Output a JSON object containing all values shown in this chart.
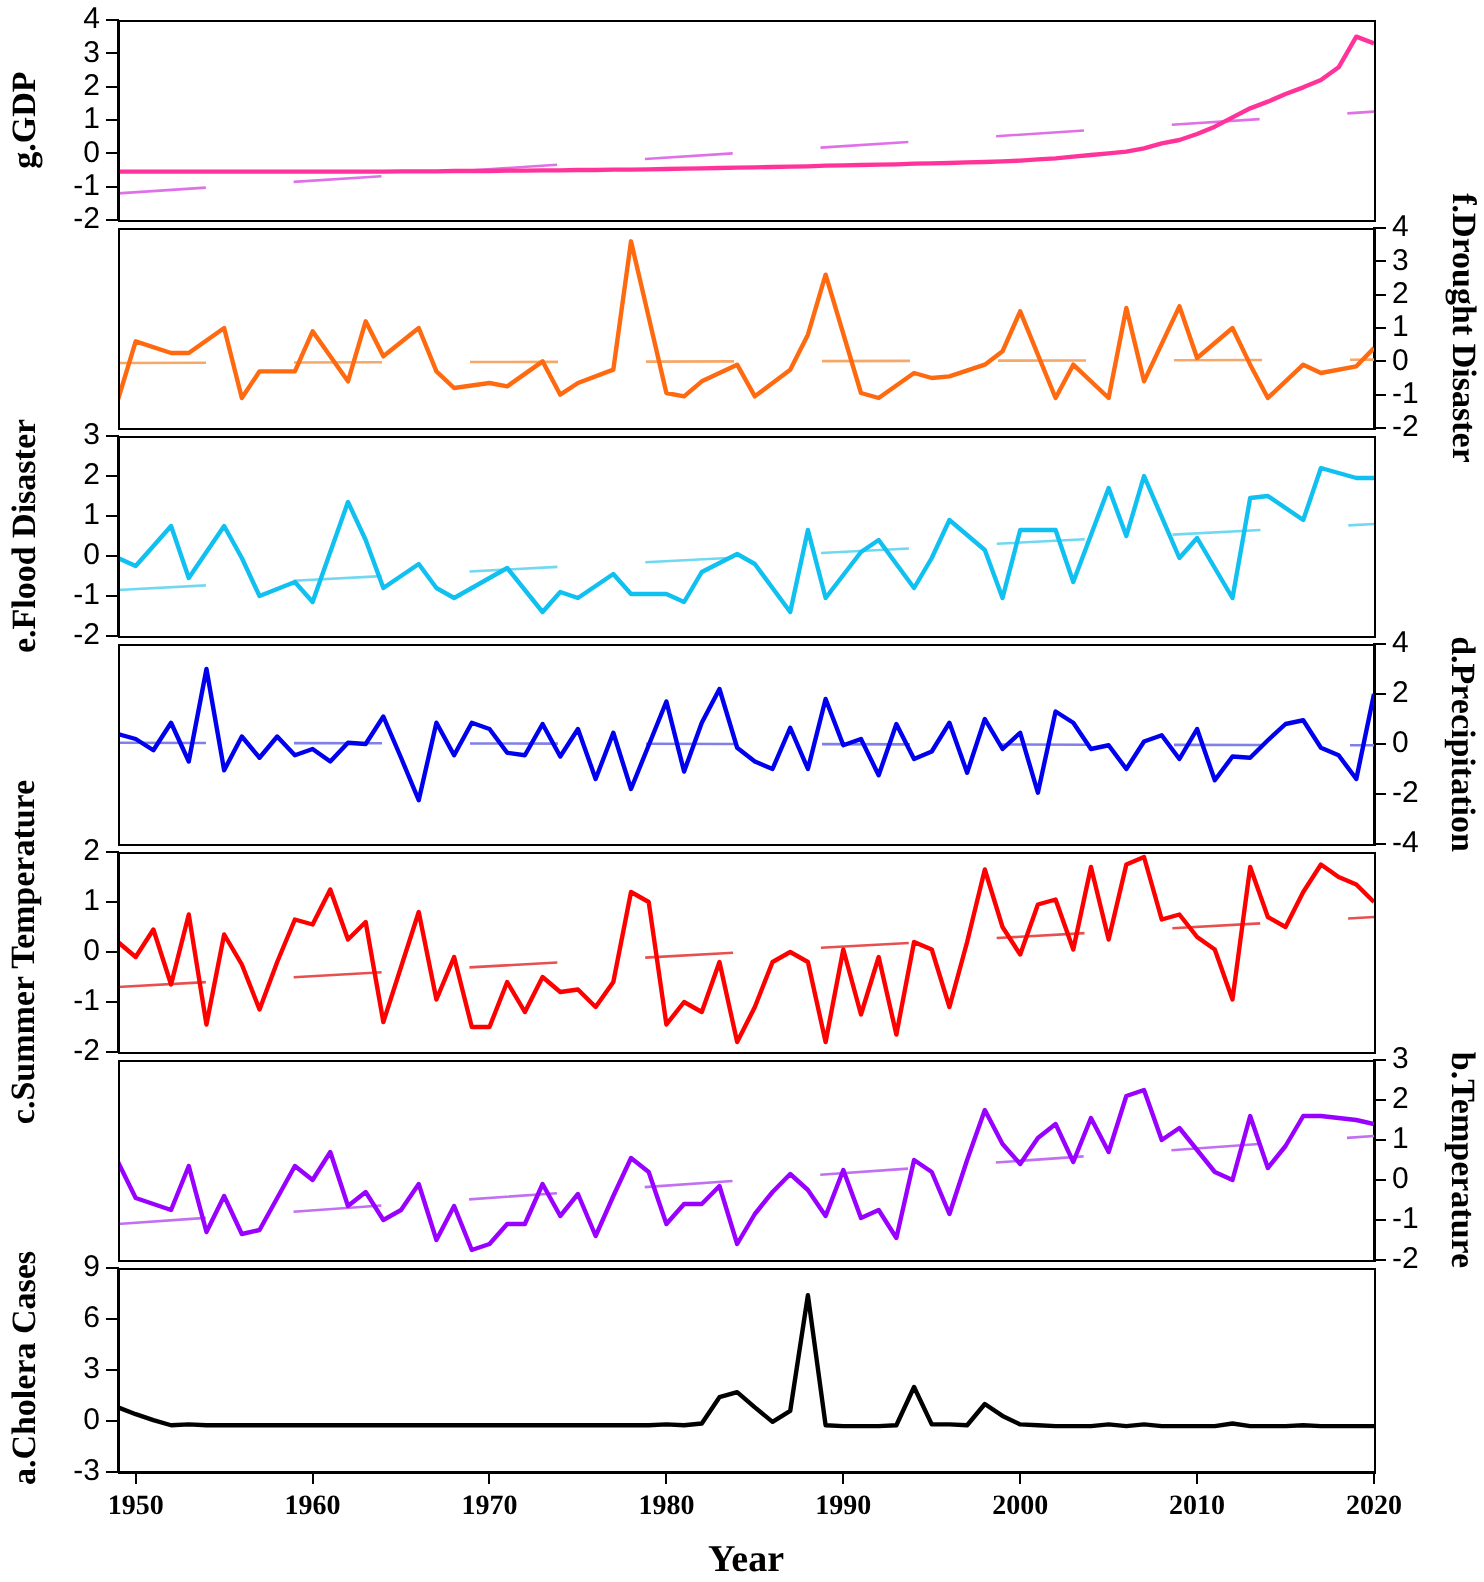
{
  "chart_data": [
    {
      "type": "line",
      "ylabel": "g.GDP",
      "xlim": [
        1949,
        2020
      ],
      "ylim": [
        -2,
        4
      ],
      "yticks": [
        -2,
        -1,
        0,
        1,
        2,
        3,
        4
      ],
      "tick_labels": "y",
      "x": [
        1949,
        1950,
        1951,
        1952,
        1953,
        1954,
        1955,
        1956,
        1957,
        1958,
        1959,
        1960,
        1961,
        1962,
        1963,
        1964,
        1965,
        1966,
        1967,
        1968,
        1969,
        1970,
        1971,
        1972,
        1973,
        1974,
        1975,
        1976,
        1977,
        1978,
        1979,
        1980,
        1981,
        1982,
        1983,
        1984,
        1985,
        1986,
        1987,
        1988,
        1989,
        1990,
        1991,
        1992,
        1993,
        1994,
        1995,
        1996,
        1997,
        1998,
        1999,
        2000,
        2001,
        2002,
        2003,
        2004,
        2005,
        2006,
        2007,
        2008,
        2009,
        2010,
        2011,
        2012,
        2013,
        2014,
        2015,
        2016,
        2017,
        2018,
        2019,
        2020
      ],
      "series": [
        {
          "color": "#ff3399",
          "values": [
            -0.55,
            -0.55,
            -0.55,
            -0.55,
            -0.55,
            -0.55,
            -0.55,
            -0.55,
            -0.55,
            -0.55,
            -0.55,
            -0.55,
            -0.55,
            -0.55,
            -0.55,
            -0.55,
            -0.54,
            -0.54,
            -0.54,
            -0.53,
            -0.53,
            -0.53,
            -0.52,
            -0.52,
            -0.51,
            -0.51,
            -0.5,
            -0.5,
            -0.49,
            -0.49,
            -0.48,
            -0.47,
            -0.46,
            -0.45,
            -0.44,
            -0.43,
            -0.42,
            -0.41,
            -0.4,
            -0.39,
            -0.37,
            -0.36,
            -0.35,
            -0.34,
            -0.33,
            -0.31,
            -0.3,
            -0.29,
            -0.27,
            -0.26,
            -0.24,
            -0.22,
            -0.18,
            -0.15,
            -0.1,
            -0.05,
            0.0,
            0.05,
            0.15,
            0.3,
            0.4,
            0.58,
            0.8,
            1.08,
            1.35,
            1.55,
            1.78,
            1.98,
            2.2,
            2.58,
            3.5,
            3.3
          ]
        },
        {
          "type": "line",
          "x": [
            1949,
            2020
          ],
          "values": [
            -1.2,
            1.25
          ],
          "color": "#e070e8",
          "line_style": "dashed"
        }
      ]
    },
    {
      "type": "line",
      "y2label": "f.Drought Disaster",
      "xlim": [
        1949,
        2020
      ],
      "y2lim": [
        -2,
        4
      ],
      "y2ticks": [
        -2,
        -1,
        0,
        1,
        2,
        3,
        4
      ],
      "tick_labels": "y",
      "series": [
        {
          "axis": "y2",
          "color": "#ff6a10",
          "x": [
            1949,
            1950,
            1952,
            1953,
            1955,
            1956,
            1957,
            1959,
            1960,
            1962,
            1963,
            1964,
            1966,
            1967,
            1968,
            1970,
            1971,
            1973,
            1974,
            1975,
            1977,
            1978,
            1980,
            1981,
            1982,
            1984,
            1985,
            1987,
            1988,
            1989,
            1991,
            1992,
            1994,
            1995,
            1996,
            1998,
            1999,
            2000,
            2002,
            2003,
            2005,
            2006,
            2007,
            2009,
            2010,
            2012,
            2013,
            2014,
            2016,
            2017,
            2019,
            2020
          ],
          "values": [
            -1.15,
            0.6,
            0.25,
            0.25,
            1.0,
            -1.1,
            -0.3,
            -0.3,
            0.9,
            -0.6,
            1.2,
            0.15,
            1.0,
            -0.3,
            -0.8,
            -0.65,
            -0.75,
            0,
            -1.0,
            -0.65,
            -0.25,
            3.6,
            -0.95,
            -1.05,
            -0.6,
            -0.1,
            -1.05,
            -0.25,
            0.8,
            2.6,
            -0.95,
            -1.1,
            -0.35,
            -0.5,
            -0.45,
            -0.1,
            0.3,
            1.5,
            -1.1,
            -0.1,
            -1.1,
            1.6,
            -0.6,
            1.65,
            0.1,
            1.0,
            -0.1,
            -1.1,
            -0.1,
            -0.35,
            -0.15,
            0.4
          ]
        },
        {
          "type": "line",
          "axis": "y2",
          "x": [
            1949,
            2020
          ],
          "values": [
            -0.05,
            0.05
          ],
          "color": "#f5a868",
          "line_style": "dashed"
        }
      ]
    },
    {
      "type": "line",
      "ylabel": "e.Flood Disaster",
      "xlim": [
        1949,
        2020
      ],
      "ylim": [
        -2,
        3
      ],
      "yticks": [
        -2,
        -1,
        0,
        1,
        2,
        3
      ],
      "tick_labels": "y",
      "series": [
        {
          "color": "#10c0f0",
          "x": [
            1949,
            1950,
            1952,
            1953,
            1955,
            1956,
            1957,
            1959,
            1960,
            1962,
            1963,
            1964,
            1966,
            1967,
            1968,
            1970,
            1971,
            1973,
            1974,
            1975,
            1977,
            1978,
            1980,
            1981,
            1982,
            1984,
            1985,
            1987,
            1988,
            1989,
            1991,
            1992,
            1994,
            1995,
            1996,
            1998,
            1999,
            2000,
            2002,
            2003,
            2005,
            2006,
            2007,
            2009,
            2010,
            2012,
            2013,
            2014,
            2016,
            2017,
            2019,
            2020
          ],
          "values": [
            -0.05,
            -0.25,
            0.75,
            -0.55,
            0.75,
            -0.05,
            -1.0,
            -0.65,
            -1.15,
            1.35,
            0.4,
            -0.8,
            -0.2,
            -0.8,
            -1.05,
            -0.55,
            -0.3,
            -1.4,
            -0.9,
            -1.05,
            -0.45,
            -0.95,
            -0.95,
            -1.15,
            -0.4,
            0.05,
            -0.2,
            -1.4,
            0.65,
            -1.05,
            0.1,
            0.4,
            -0.8,
            -0.05,
            0.9,
            0.15,
            -1.05,
            0.65,
            0.65,
            -0.65,
            1.7,
            0.5,
            2.0,
            -0.05,
            0.45,
            -1.05,
            1.45,
            1.5,
            0.9,
            2.2,
            1.95,
            1.95
          ]
        },
        {
          "type": "line",
          "x": [
            1949,
            2020
          ],
          "values": [
            -0.85,
            0.8
          ],
          "color": "#70d8f0",
          "line_style": "dashed"
        }
      ]
    },
    {
      "type": "line",
      "y2label": "d.Precipitation",
      "xlim": [
        1949,
        2020
      ],
      "y2lim": [
        -4,
        4
      ],
      "y2ticks": [
        -4,
        -2,
        0,
        2,
        4
      ],
      "tick_labels": "y",
      "x": [
        1949,
        1950,
        1951,
        1952,
        1953,
        1954,
        1955,
        1956,
        1957,
        1958,
        1959,
        1960,
        1961,
        1962,
        1963,
        1964,
        1965,
        1966,
        1967,
        1968,
        1969,
        1970,
        1971,
        1972,
        1973,
        1974,
        1975,
        1976,
        1977,
        1978,
        1979,
        1980,
        1981,
        1982,
        1983,
        1984,
        1985,
        1986,
        1987,
        1988,
        1989,
        1990,
        1991,
        1992,
        1993,
        1994,
        1995,
        1996,
        1997,
        1998,
        1999,
        2000,
        2001,
        2002,
        2003,
        2004,
        2005,
        2006,
        2007,
        2008,
        2009,
        2010,
        2011,
        2012,
        2013,
        2014,
        2015,
        2016,
        2017,
        2018,
        2019,
        2020
      ],
      "series": [
        {
          "axis": "y2",
          "color": "#0000ee",
          "values": [
            0.4,
            0.2,
            -0.25,
            0.85,
            -0.7,
            3.0,
            -1.05,
            0.3,
            -0.55,
            0.3,
            -0.45,
            -0.2,
            -0.7,
            0.05,
            0,
            1.1,
            -0.55,
            -2.25,
            0.85,
            -0.45,
            0.85,
            0.6,
            -0.35,
            -0.45,
            0.8,
            -0.5,
            0.6,
            -1.4,
            0.45,
            -1.8,
            -0.05,
            1.7,
            -1.1,
            0.85,
            2.2,
            -0.15,
            -0.7,
            -1.0,
            0.65,
            -1.0,
            1.8,
            -0.05,
            0.2,
            -1.25,
            0.8,
            -0.6,
            -0.3,
            0.85,
            -1.15,
            1.0,
            -0.2,
            0.45,
            -1.95,
            1.3,
            0.85,
            -0.2,
            -0.05,
            -1.0,
            0.1,
            0.35,
            -0.6,
            0.6,
            -1.45,
            -0.5,
            -0.55,
            0.15,
            0.8,
            0.95,
            -0.15,
            -0.45,
            -1.4,
            2.0
          ]
        },
        {
          "type": "line",
          "axis": "y2",
          "x": [
            1949,
            2020
          ],
          "values": [
            0.05,
            -0.05
          ],
          "color": "#8080e8",
          "line_style": "dashed"
        }
      ]
    },
    {
      "type": "line",
      "ylabel": "c.Summer Temperature",
      "xlim": [
        1949,
        2020
      ],
      "ylim": [
        -2,
        2
      ],
      "yticks": [
        -2,
        -1,
        0,
        1,
        2
      ],
      "tick_labels": "y",
      "x": [
        1949,
        1950,
        1951,
        1952,
        1953,
        1954,
        1955,
        1956,
        1957,
        1958,
        1959,
        1960,
        1961,
        1962,
        1963,
        1964,
        1965,
        1966,
        1967,
        1968,
        1969,
        1970,
        1971,
        1972,
        1973,
        1974,
        1975,
        1976,
        1977,
        1978,
        1979,
        1980,
        1981,
        1982,
        1983,
        1984,
        1985,
        1986,
        1987,
        1988,
        1989,
        1990,
        1991,
        1992,
        1993,
        1994,
        1995,
        1996,
        1997,
        1998,
        1999,
        2000,
        2001,
        2002,
        2003,
        2004,
        2005,
        2006,
        2007,
        2008,
        2009,
        2010,
        2011,
        2012,
        2013,
        2014,
        2015,
        2016,
        2017,
        2018,
        2019,
        2020
      ],
      "series": [
        {
          "color": "#ff0000",
          "values": [
            0.2,
            -0.1,
            0.45,
            -0.65,
            0.75,
            -1.45,
            0.35,
            -0.25,
            -1.15,
            -0.2,
            0.65,
            0.55,
            1.25,
            0.25,
            0.6,
            -1.4,
            -0.3,
            0.8,
            -0.95,
            -0.1,
            -1.5,
            -1.5,
            -0.6,
            -1.2,
            -0.5,
            -0.8,
            -0.75,
            -1.1,
            -0.6,
            1.2,
            1.0,
            -1.45,
            -1.0,
            -1.2,
            -0.2,
            -1.8,
            -1.1,
            -0.2,
            0,
            -0.2,
            -1.8,
            0.05,
            -1.25,
            -0.1,
            -1.65,
            0.2,
            0.05,
            -1.1,
            0.2,
            1.65,
            0.5,
            -0.05,
            0.95,
            1.05,
            0.05,
            1.7,
            0.25,
            1.75,
            1.9,
            0.65,
            0.75,
            0.3,
            0.05,
            -0.95,
            1.7,
            0.7,
            0.5,
            1.2,
            1.75,
            1.5,
            1.35,
            1.0
          ]
        },
        {
          "type": "line",
          "x": [
            1949,
            2020
          ],
          "values": [
            -0.7,
            0.7
          ],
          "color": "#e85050",
          "line_style": "dashed"
        }
      ]
    },
    {
      "type": "line",
      "y2label": "b.Temperature",
      "xlim": [
        1949,
        2020
      ],
      "y2lim": [
        -2,
        3
      ],
      "y2ticks": [
        -2,
        -1,
        0,
        1,
        2,
        3
      ],
      "tick_labels": "y",
      "x": [
        1949,
        1950,
        1951,
        1952,
        1953,
        1954,
        1955,
        1956,
        1957,
        1958,
        1959,
        1960,
        1961,
        1962,
        1963,
        1964,
        1965,
        1966,
        1967,
        1968,
        1969,
        1970,
        1971,
        1972,
        1973,
        1974,
        1975,
        1976,
        1977,
        1978,
        1979,
        1980,
        1981,
        1982,
        1983,
        1984,
        1985,
        1986,
        1987,
        1988,
        1989,
        1990,
        1991,
        1992,
        1993,
        1994,
        1995,
        1996,
        1997,
        1998,
        1999,
        2000,
        2001,
        2002,
        2003,
        2004,
        2005,
        2006,
        2007,
        2008,
        2009,
        2010,
        2011,
        2012,
        2013,
        2014,
        2015,
        2016,
        2017,
        2018,
        2019,
        2020
      ],
      "series": [
        {
          "axis": "y2",
          "color": "#9900ff",
          "values": [
            0.45,
            -0.45,
            -0.6,
            -0.75,
            0.35,
            -1.3,
            -0.4,
            -1.35,
            -1.25,
            -0.45,
            0.35,
            0.0,
            0.7,
            -0.65,
            -0.3,
            -1.0,
            -0.75,
            -0.1,
            -1.5,
            -0.65,
            -1.75,
            -1.6,
            -1.1,
            -1.1,
            -0.1,
            -0.9,
            -0.35,
            -1.4,
            -0.4,
            0.55,
            0.2,
            -1.1,
            -0.6,
            -0.6,
            -0.15,
            -1.6,
            -0.85,
            -0.3,
            0.15,
            -0.25,
            -0.9,
            0.25,
            -0.95,
            -0.75,
            -1.45,
            0.5,
            0.2,
            -0.85,
            0.5,
            1.75,
            0.9,
            0.4,
            1.05,
            1.4,
            0.45,
            1.55,
            0.7,
            2.1,
            2.25,
            1.0,
            1.3,
            0.75,
            0.2,
            0.0,
            1.6,
            0.3,
            0.85,
            1.6,
            1.6,
            1.55,
            1.5,
            1.4
          ]
        },
        {
          "type": "line",
          "axis": "y2",
          "x": [
            1949,
            2020
          ],
          "values": [
            -1.1,
            1.1
          ],
          "color": "#c070f0",
          "line_style": "dashed"
        }
      ]
    },
    {
      "type": "line",
      "ylabel": "a.Cholera Cases",
      "xlabel": "Year",
      "xlim": [
        1949,
        2020
      ],
      "xticks": [
        1950,
        1960,
        1970,
        1980,
        1990,
        2000,
        2010,
        2020
      ],
      "ylim": [
        -3,
        9
      ],
      "yticks": [
        -3,
        0,
        3,
        6,
        9
      ],
      "x": [
        1949,
        1950,
        1951,
        1952,
        1953,
        1954,
        1955,
        1956,
        1957,
        1958,
        1959,
        1960,
        1961,
        1962,
        1963,
        1964,
        1965,
        1966,
        1967,
        1968,
        1969,
        1970,
        1971,
        1972,
        1973,
        1974,
        1975,
        1976,
        1977,
        1978,
        1979,
        1980,
        1981,
        1982,
        1983,
        1984,
        1985,
        1986,
        1987,
        1988,
        1989,
        1990,
        1991,
        1992,
        1993,
        1994,
        1995,
        1996,
        1997,
        1998,
        1999,
        2000,
        2001,
        2002,
        2003,
        2004,
        2005,
        2006,
        2007,
        2008,
        2009,
        2010,
        2011,
        2012,
        2013,
        2014,
        2015,
        2016,
        2017,
        2018,
        2019,
        2020
      ],
      "series": [
        {
          "color": "#000000",
          "values": [
            0.8,
            0.4,
            0.05,
            -0.25,
            -0.2,
            -0.25,
            -0.25,
            -0.25,
            -0.25,
            -0.25,
            -0.25,
            -0.25,
            -0.25,
            -0.25,
            -0.25,
            -0.25,
            -0.25,
            -0.25,
            -0.25,
            -0.25,
            -0.25,
            -0.25,
            -0.25,
            -0.25,
            -0.25,
            -0.25,
            -0.25,
            -0.25,
            -0.25,
            -0.25,
            -0.25,
            -0.2,
            -0.25,
            -0.15,
            1.4,
            1.7,
            0.8,
            -0.05,
            0.6,
            7.4,
            -0.25,
            -0.3,
            -0.3,
            -0.3,
            -0.25,
            2.0,
            -0.2,
            -0.2,
            -0.25,
            1.0,
            0.3,
            -0.2,
            -0.25,
            -0.3,
            -0.3,
            -0.3,
            -0.2,
            -0.3,
            -0.2,
            -0.3,
            -0.3,
            -0.3,
            -0.3,
            -0.15,
            -0.3,
            -0.3,
            -0.3,
            -0.25,
            -0.3,
            -0.3,
            -0.3,
            -0.3
          ]
        }
      ]
    }
  ]
}
